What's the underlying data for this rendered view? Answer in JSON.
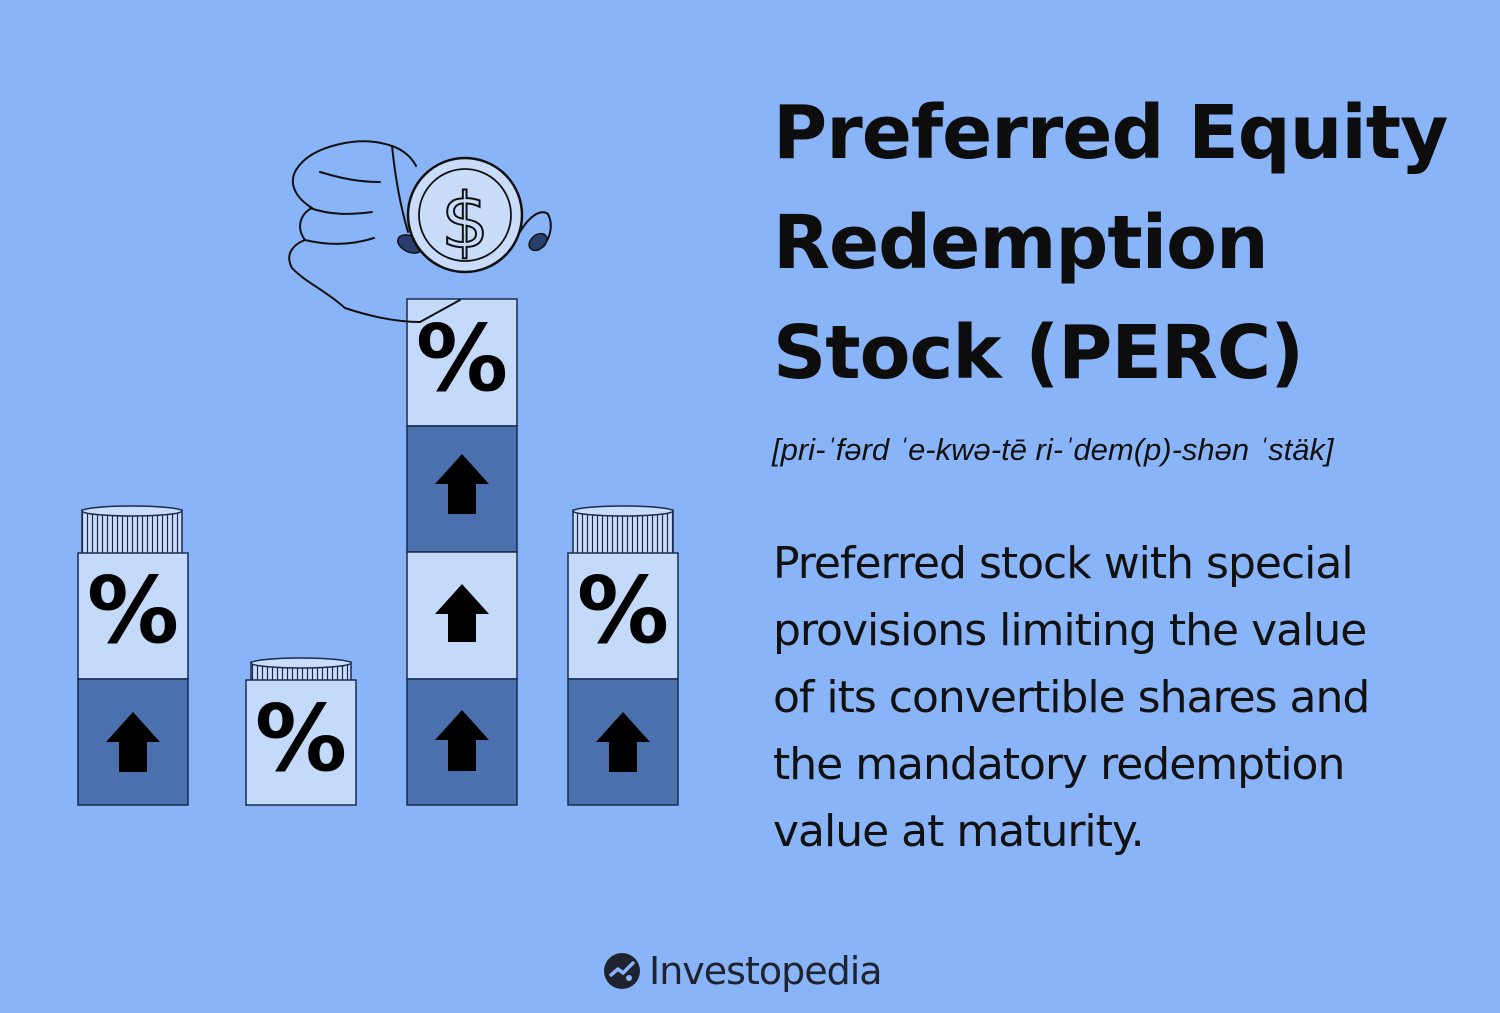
{
  "title_lines": [
    "Preferred Equity",
    "Redemption",
    "Stock (PERC)"
  ],
  "pronunciation": "[pri-ˈfərd ˈe-kwə-tē ri-ˈdem(p)-shən ˈstäk]",
  "definition_lines": [
    "Preferred stock with special",
    "provisions limiting the value",
    "of its convertible shares and",
    "the mandatory redemption",
    "value at maturity."
  ],
  "brand": {
    "name": "Investopedia",
    "logo_icon": "investopedia-logo-icon"
  },
  "illustration": {
    "percent_symbol": "%",
    "dollar_symbol": "$",
    "icons": [
      "hand-icon",
      "dollar-coin-icon",
      "percent-block-icon",
      "up-arrow-icon",
      "coin-stack-icon"
    ]
  },
  "colors": {
    "background": "#8ab4f8",
    "dark_block": "#4a70ad",
    "light_block": "#c4dafb",
    "coin": "#c9dcfa",
    "text": "#111111"
  }
}
